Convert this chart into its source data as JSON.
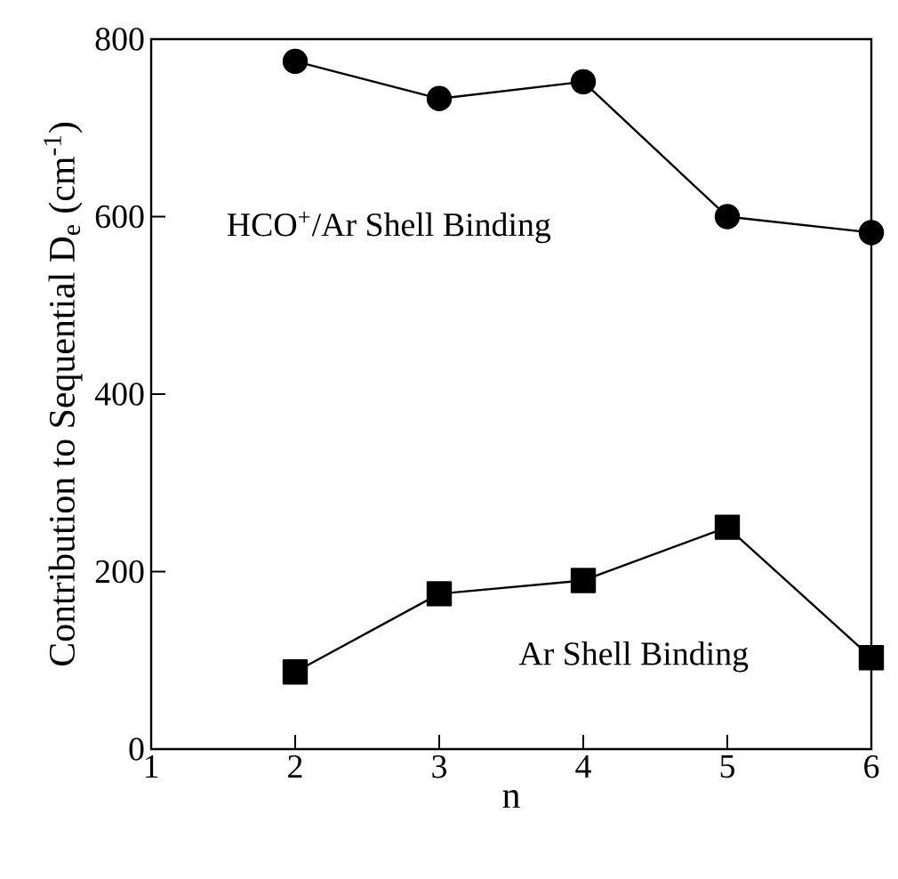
{
  "chart_data": {
    "type": "line",
    "xlabel": "n",
    "ylabel": "Contribution to Sequential D$_{e}$ (cm$^{-1}$)",
    "x": [
      2,
      3,
      4,
      5,
      6
    ],
    "series": [
      {
        "color": "#000000",
        "marker": "circle",
        "values": [
          775,
          733,
          752,
          600,
          582
        ]
      },
      {
        "color": "#000000",
        "marker": "square",
        "values": [
          87,
          175,
          190,
          250,
          103
        ]
      }
    ],
    "xlim": [
      1,
      6
    ],
    "ylim": [
      0,
      800
    ],
    "xticks": [
      1,
      2,
      3,
      4,
      5,
      6
    ],
    "yticks": [
      0,
      200,
      400,
      600,
      800
    ],
    "grid": false,
    "annotations": [
      "HCO$^{+}$/Ar Shell Binding",
      "Ar Shell Binding"
    ]
  }
}
